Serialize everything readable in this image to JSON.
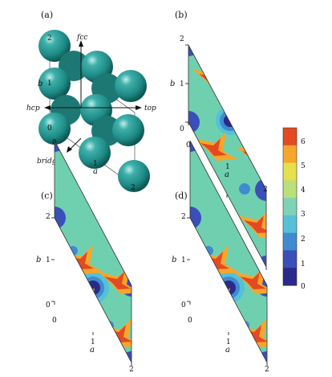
{
  "panels": {
    "a": {
      "label": "(a)",
      "sites": {
        "fcc": "fcc",
        "hcp": "hcp",
        "top": "top",
        "bridge": "bridge"
      },
      "axis_a": "a",
      "axis_b": "b",
      "ticks_b": [
        "0",
        "1",
        "2"
      ],
      "ticks_a": [
        "0",
        "1",
        "2"
      ],
      "atom_color": "#1e8a86"
    },
    "b": {
      "label": "(b)",
      "axis_a": "a",
      "axis_b": "b",
      "ticks_a": [
        "0",
        "1",
        "2"
      ],
      "ticks_b": [
        "0",
        "1",
        "2"
      ]
    },
    "c": {
      "label": "(c)",
      "axis_a": "a",
      "axis_b": "b",
      "ticks_a": [
        "0",
        "1",
        "2"
      ],
      "ticks_b": [
        "0",
        "1",
        "2"
      ]
    },
    "d": {
      "label": "(d)",
      "axis_a": "a",
      "axis_b": "b",
      "ticks_a": [
        "0",
        "1",
        "2"
      ],
      "ticks_b": [
        "0",
        "1",
        "2"
      ]
    }
  },
  "colorbar": {
    "ticks": [
      "0",
      "1",
      "2",
      "3",
      "4",
      "5",
      "6"
    ],
    "colors": [
      "#2a2a8a",
      "#3b4fb8",
      "#3f8bd0",
      "#55c0d8",
      "#7ed3b4",
      "#b9e07a",
      "#e6e04a",
      "#f6a62a",
      "#e44a22"
    ]
  },
  "chart_data": [
    {
      "type": "heatmap",
      "panel": "(b)",
      "xlabel": "a",
      "ylabel": "b",
      "x_ticks": [
        "0",
        "1",
        "2"
      ],
      "y_ticks": [
        "0",
        "1",
        "2"
      ],
      "value_range": [
        0,
        6
      ],
      "colorbar_ticks": [
        0,
        1,
        2,
        3,
        4,
        5,
        6
      ]
    },
    {
      "type": "heatmap",
      "panel": "(c)",
      "xlabel": "a",
      "ylabel": "b",
      "x_ticks": [
        "0",
        "1",
        "2"
      ],
      "y_ticks": [
        "0",
        "1",
        "2"
      ],
      "value_range": [
        0,
        6
      ]
    },
    {
      "type": "heatmap",
      "panel": "(d)",
      "xlabel": "a",
      "ylabel": "b",
      "x_ticks": [
        "0",
        "1",
        "2"
      ],
      "y_ticks": [
        "0",
        "1",
        "2"
      ],
      "value_range": [
        0,
        6
      ]
    }
  ]
}
